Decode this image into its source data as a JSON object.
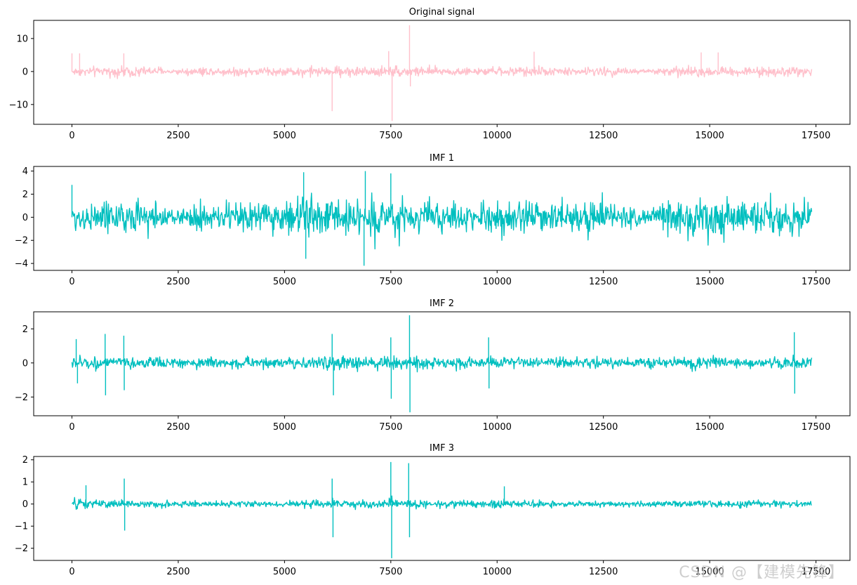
{
  "watermark": "CSDN @【建模先锋】",
  "chart_data": [
    {
      "type": "line",
      "title": "Original signal",
      "color": "#ffc0cb",
      "xlim": [
        -900,
        18300
      ],
      "ylim": [
        -16,
        15.5
      ],
      "xticks": [
        0,
        2500,
        5000,
        7500,
        10000,
        12500,
        15000,
        17500
      ],
      "xtick_labels": [
        "0",
        "2500",
        "5000",
        "7500",
        "10000",
        "12500",
        "15000",
        "17500"
      ],
      "yticks": [
        10,
        0,
        -10
      ],
      "ytick_labels": [
        "10",
        "0",
        "−10"
      ],
      "series": [
        {
          "x_start": 0,
          "x_end": 17400,
          "envelope": {
            "x": [
              0,
              1000,
              1400,
              2000,
              2500,
              3000,
              3500,
              4000,
              4500,
              5000,
              5500,
              6000,
              6500,
              7000,
              7500,
              8000,
              8500,
              9000,
              9500,
              10000,
              10500,
              11000,
              11500,
              12000,
              12500,
              13000,
              13500,
              14000,
              14500,
              15000,
              15500,
              16000,
              16500,
              17000,
              17400
            ],
            "amp": [
              2.2,
              2.6,
              3.2,
              2.5,
              1.4,
              2.8,
              2.0,
              2.5,
              2.6,
              2.4,
              2.9,
              2.6,
              3.0,
              2.8,
              3.2,
              3.0,
              2.6,
              2.4,
              1.8,
              2.2,
              2.6,
              2.8,
              2.0,
              2.2,
              2.6,
              2.2,
              1.6,
              2.8,
              2.6,
              2.8,
              2.8,
              2.6,
              2.4,
              2.6,
              2.2
            ]
          },
          "spikes": [
            {
              "x": 0,
              "y": 5.5
            },
            {
              "x": 180,
              "y": 5.5
            },
            {
              "x": 1220,
              "y": 5.5
            },
            {
              "x": 6120,
              "y": -12.0
            },
            {
              "x": 7450,
              "y": 6.2
            },
            {
              "x": 7530,
              "y": -15.0
            },
            {
              "x": 7940,
              "y": 14.0
            },
            {
              "x": 7960,
              "y": -4.5
            },
            {
              "x": 10870,
              "y": 6.0
            },
            {
              "x": 14800,
              "y": 5.8
            },
            {
              "x": 15200,
              "y": 5.8
            }
          ]
        }
      ]
    },
    {
      "type": "line",
      "title": "IMF 1",
      "color": "#00bfbf",
      "xlim": [
        -900,
        18300
      ],
      "ylim": [
        -4.6,
        4.4
      ],
      "xticks": [
        0,
        2500,
        5000,
        7500,
        10000,
        12500,
        15000,
        17500
      ],
      "xtick_labels": [
        "0",
        "2500",
        "5000",
        "7500",
        "10000",
        "12500",
        "15000",
        "17500"
      ],
      "yticks": [
        4,
        2,
        0,
        -2,
        -4
      ],
      "ytick_labels": [
        "4",
        "2",
        "0",
        "−2",
        "−4"
      ],
      "series": [
        {
          "x_start": 0,
          "x_end": 17400,
          "envelope": {
            "x": [
              0,
              500,
              1000,
              1500,
              2000,
              2500,
              3000,
              3500,
              4000,
              4500,
              5000,
              5500,
              6000,
              6500,
              7000,
              7500,
              8000,
              8500,
              9000,
              9500,
              10000,
              10500,
              11000,
              11500,
              12000,
              12500,
              13000,
              13500,
              14000,
              14500,
              15000,
              15500,
              16000,
              16500,
              17000,
              17400
            ],
            "amp": [
              1.8,
              2.3,
              2.6,
              3.0,
              2.4,
              0.9,
              3.0,
              2.0,
              2.8,
              2.3,
              2.5,
              3.4,
              2.6,
              2.8,
              3.5,
              3.2,
              2.5,
              2.4,
              2.2,
              1.8,
              2.7,
              2.9,
              2.0,
              2.5,
              2.6,
              2.7,
              2.2,
              1.0,
              2.8,
              3.0,
              3.2,
              3.0,
              3.1,
              2.7,
              2.8,
              2.2
            ]
          },
          "spikes": [
            {
              "x": 0,
              "y": 2.8
            },
            {
              "x": 5450,
              "y": 3.9
            },
            {
              "x": 5500,
              "y": -3.6
            },
            {
              "x": 6900,
              "y": 4.0
            },
            {
              "x": 6870,
              "y": -4.2
            },
            {
              "x": 7500,
              "y": 3.8
            }
          ]
        }
      ]
    },
    {
      "type": "line",
      "title": "IMF 2",
      "color": "#00bfbf",
      "xlim": [
        -900,
        18300
      ],
      "ylim": [
        -3.1,
        3.0
      ],
      "xticks": [
        0,
        2500,
        5000,
        7500,
        10000,
        12500,
        15000,
        17500
      ],
      "xtick_labels": [
        "0",
        "2500",
        "5000",
        "7500",
        "10000",
        "12500",
        "15000",
        "17500"
      ],
      "yticks": [
        2,
        0,
        -2
      ],
      "ytick_labels": [
        "2",
        "0",
        "−2"
      ],
      "series": [
        {
          "x_start": 0,
          "x_end": 17400,
          "envelope": {
            "x": [
              0,
              500,
              1000,
              1500,
              2000,
              2500,
              3000,
              3500,
              4000,
              4500,
              5000,
              5500,
              6000,
              6500,
              7000,
              7500,
              8000,
              8500,
              9000,
              9500,
              10000,
              10500,
              11000,
              11500,
              12000,
              12500,
              13000,
              13500,
              14000,
              14500,
              15000,
              15500,
              16000,
              16500,
              17000,
              17400
            ],
            "amp": [
              0.9,
              0.6,
              0.5,
              0.6,
              0.6,
              0.5,
              0.6,
              0.6,
              0.6,
              0.6,
              0.6,
              0.6,
              0.7,
              0.7,
              0.7,
              0.8,
              0.7,
              0.7,
              0.6,
              0.6,
              0.6,
              0.6,
              0.6,
              0.5,
              0.6,
              0.5,
              0.5,
              0.6,
              0.6,
              0.7,
              0.7,
              0.6,
              0.6,
              0.6,
              0.7,
              0.6
            ]
          },
          "spikes": [
            {
              "x": 100,
              "y": 1.4
            },
            {
              "x": 130,
              "y": -1.2
            },
            {
              "x": 780,
              "y": 1.7
            },
            {
              "x": 790,
              "y": -1.9
            },
            {
              "x": 1220,
              "y": 1.6
            },
            {
              "x": 1230,
              "y": -1.6
            },
            {
              "x": 6120,
              "y": 1.7
            },
            {
              "x": 6150,
              "y": -1.9
            },
            {
              "x": 7500,
              "y": 1.5
            },
            {
              "x": 7510,
              "y": -2.1
            },
            {
              "x": 7940,
              "y": 2.8
            },
            {
              "x": 7950,
              "y": -2.9
            },
            {
              "x": 9800,
              "y": 1.5
            },
            {
              "x": 9810,
              "y": -1.5
            },
            {
              "x": 16990,
              "y": 1.8
            },
            {
              "x": 17000,
              "y": -1.8
            }
          ]
        }
      ]
    },
    {
      "type": "line",
      "title": "IMF 3",
      "color": "#00bfbf",
      "xlim": [
        -900,
        18300
      ],
      "ylim": [
        -2.55,
        2.15
      ],
      "xticks": [
        0,
        2500,
        5000,
        7500,
        10000,
        12500,
        15000,
        17500
      ],
      "xtick_labels": [
        "0",
        "2500",
        "5000",
        "7500",
        "10000",
        "12500",
        "15000",
        "17500"
      ],
      "yticks": [
        2,
        1,
        0,
        -1,
        -2
      ],
      "ytick_labels": [
        "2",
        "1",
        "0",
        "−1",
        "−2"
      ],
      "series": [
        {
          "x_start": 0,
          "x_end": 17400,
          "envelope": {
            "x": [
              0,
              500,
              1000,
              1500,
              2000,
              2500,
              3000,
              3500,
              4000,
              4500,
              5000,
              5500,
              6000,
              6500,
              7000,
              7500,
              8000,
              8500,
              9000,
              9500,
              10000,
              10500,
              11000,
              11500,
              12000,
              12500,
              13000,
              13500,
              14000,
              14500,
              15000,
              15500,
              16000,
              16500,
              17000,
              17400
            ],
            "amp": [
              0.45,
              0.4,
              0.3,
              0.3,
              0.3,
              0.25,
              0.25,
              0.25,
              0.25,
              0.25,
              0.25,
              0.3,
              0.3,
              0.35,
              0.35,
              0.4,
              0.35,
              0.3,
              0.3,
              0.3,
              0.35,
              0.3,
              0.3,
              0.2,
              0.25,
              0.25,
              0.25,
              0.2,
              0.25,
              0.3,
              0.3,
              0.3,
              0.3,
              0.25,
              0.3,
              0.25
            ]
          },
          "spikes": [
            {
              "x": 330,
              "y": 0.85
            },
            {
              "x": 1230,
              "y": 1.15
            },
            {
              "x": 1240,
              "y": -1.2
            },
            {
              "x": 6120,
              "y": 1.15
            },
            {
              "x": 6140,
              "y": -1.5
            },
            {
              "x": 7500,
              "y": 1.9
            },
            {
              "x": 7520,
              "y": -2.45
            },
            {
              "x": 7920,
              "y": 1.85
            },
            {
              "x": 7940,
              "y": -1.5
            },
            {
              "x": 10170,
              "y": 0.8
            }
          ]
        }
      ]
    }
  ]
}
